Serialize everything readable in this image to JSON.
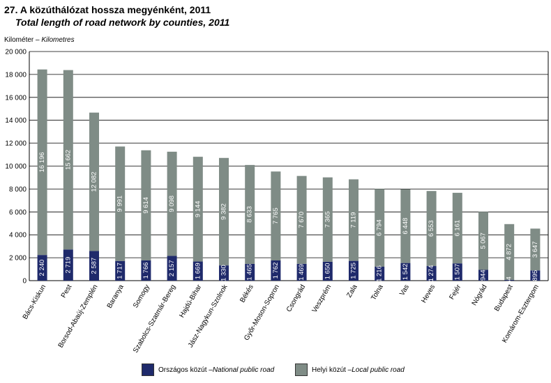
{
  "header": {
    "title": "27. A közúthálózat hossza megyénként, 2011",
    "subtitle": "Total length of road network by counties, 2011",
    "unit_hu": "Kilométer – ",
    "unit_en": "Kilometres"
  },
  "colors": {
    "national": "#1f2a6b",
    "local": "#7f8c86",
    "grid": "#000000",
    "label": "#ffffff"
  },
  "legend": {
    "national_hu": "Országos közút – ",
    "national_en": "National public road",
    "local_hu": "Helyi közút – ",
    "local_en": "Local public road"
  },
  "chart_data": {
    "type": "bar",
    "stacked": true,
    "ylim": [
      0,
      20000
    ],
    "yticks": [
      "0",
      "2 000",
      "4 000",
      "6 000",
      "8 000",
      "10 000",
      "12 000",
      "14 000",
      "16 000",
      "18 000",
      "20 000"
    ],
    "grid": true,
    "legend_position": "bottom",
    "categories": [
      "Bács-Kiskun",
      "Pest",
      "Borsod-Abaúj-Zemplén",
      "Baranya",
      "Somogy",
      "Szabolcs-Szatmár-Bereg",
      "Hajdú-Bihar",
      "Jász-Nagykun-Szolnok",
      "Békés",
      "Győr-Moson-Sopron",
      "Csongrád",
      "Veszprém",
      "Zala",
      "Tolna",
      "Vas",
      "Heves",
      "Fejér",
      "Nógrád",
      "Budapest",
      "Komárom-Esztergom"
    ],
    "series": [
      {
        "name": "Országos közút – National public road",
        "values": [
          2240,
          2719,
          2587,
          1717,
          1766,
          2157,
          1669,
          1330,
          1465,
          1762,
          1469,
          1650,
          1725,
          1216,
          1542,
          1274,
          1507,
          944,
          64,
          895
        ],
        "labels": [
          "2 240",
          "2 719",
          "2 587",
          "1 717",
          "1 766",
          "2 157",
          "1 669",
          "1 330",
          "1 465",
          "1 762",
          "1 469",
          "1 650",
          "1 725",
          "1 216",
          "1 542",
          "1 274",
          "1 507",
          "944",
          "64",
          "895"
        ]
      },
      {
        "name": "Helyi közút – Local public road",
        "values": [
          16196,
          15662,
          12082,
          9991,
          9614,
          9098,
          9144,
          9382,
          8633,
          7765,
          7670,
          7365,
          7119,
          6794,
          6448,
          6553,
          6161,
          5067,
          4872,
          3647
        ],
        "labels": [
          "16 196",
          "15 662",
          "12 082",
          "9 991",
          "9 614",
          "9 098",
          "9 144",
          "9 382",
          "8 633",
          "7 765",
          "7 670",
          "7 365",
          "7 119",
          "6 794",
          "6 448",
          "6 553",
          "6 161",
          "5 067",
          "4 872",
          "3 647"
        ]
      }
    ]
  }
}
